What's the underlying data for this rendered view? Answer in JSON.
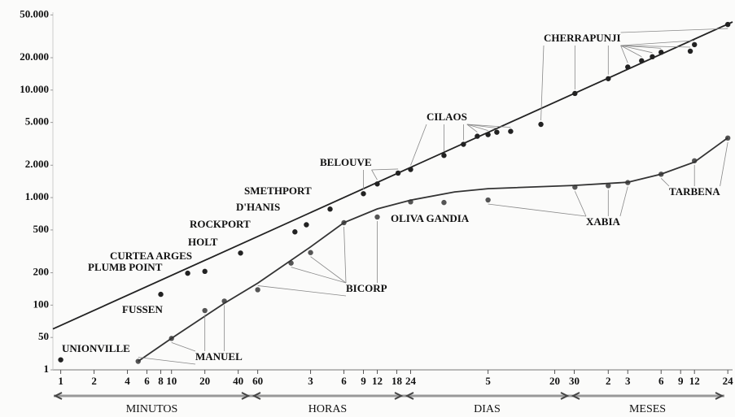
{
  "chart_data": {
    "type": "scatter",
    "log_x": true,
    "log_y": true,
    "xlim": [
      0.85,
      1160000
    ],
    "ylim": [
      25,
      53000
    ],
    "xticks": [
      1,
      2,
      4,
      6,
      8,
      10,
      20,
      40,
      {
        "value": 60,
        "label": "60"
      },
      {
        "value": 180,
        "label": "3"
      },
      {
        "value": 360,
        "label": "6"
      },
      {
        "value": 540,
        "label": "9"
      },
      {
        "value": 720,
        "label": "12"
      },
      {
        "value": 1080,
        "label": "18"
      },
      {
        "value": 1440,
        "label": "24"
      },
      {
        "value": 7200,
        "label": "5"
      },
      {
        "value": 28800,
        "label": "20"
      },
      {
        "value": 43200,
        "label": "30"
      },
      {
        "value": 87600,
        "label": "2"
      },
      {
        "value": 131400,
        "label": "3"
      },
      {
        "value": 262800,
        "label": "6"
      },
      {
        "value": 394200,
        "label": "9"
      },
      {
        "value": 525600,
        "label": "12"
      },
      {
        "value": 1051200,
        "label": "24"
      }
    ],
    "yticks": [
      {
        "value": 25,
        "label": "1"
      },
      50,
      100,
      200,
      500,
      {
        "value": 1000,
        "label": "1.000"
      },
      {
        "value": 2000,
        "label": "2.000"
      },
      {
        "value": 5000,
        "label": "5.000"
      },
      {
        "value": 10000,
        "label": "10.000"
      },
      {
        "value": 20000,
        "label": "20.000"
      },
      {
        "value": 50000,
        "label": "50.000"
      }
    ],
    "period_labels": [
      "MINUTOS",
      "HORAS",
      "DIAS",
      "MESES"
    ],
    "series": [
      {
        "color": "#222222",
        "marker": "dot",
        "x": [
          1,
          8,
          14,
          20,
          42,
          130,
          165,
          270,
          540,
          720,
          1110,
          1440,
          2880,
          4320,
          5760,
          7200,
          8640,
          11520,
          21600,
          43800,
          87600,
          131400,
          175200,
          219000,
          262800,
          481800,
          525600,
          1051200
        ],
        "values": [
          31,
          126,
          198,
          206,
          305,
          480,
          559,
          782,
          1087,
          1340,
          1690,
          1825,
          2467,
          3130,
          3721,
          3854,
          4055,
          4130,
          4798,
          9300,
          12767,
          16369,
          18738,
          20412,
          22454,
          22990,
          26461,
          40768
        ]
      },
      {
        "color": "#555555",
        "marker": "dot",
        "x": [
          5,
          10,
          20,
          30,
          60,
          120,
          180,
          360,
          720,
          1440,
          2880,
          7200,
          43800,
          87600,
          131400,
          262800,
          525600,
          1051200
        ],
        "values": [
          30,
          49,
          89,
          109,
          139,
          246,
          308,
          584,
          660,
          913,
          900,
          950,
          1250,
          1290,
          1380,
          1650,
          2200,
          3580
        ]
      },
      {
        "color": "#222222",
        "marker": "line",
        "x": [
          0.85,
          1160000
        ],
        "values": [
          60,
          43000
        ]
      },
      {
        "color": "#333333",
        "marker": "line",
        "x": [
          5,
          10,
          30,
          60,
          180,
          360,
          720,
          1440,
          3600,
          7200,
          43200,
          131400,
          262800,
          525600,
          1051200
        ],
        "values": [
          30,
          49,
          104,
          160,
          348,
          585,
          785,
          948,
          1130,
          1210,
          1297,
          1390,
          1652,
          2143,
          3597
        ]
      }
    ],
    "annotations": [
      "UNIONVILLE",
      "FUSSEN",
      "PLUMB POINT",
      "CURTEA ARGES",
      "HOLT",
      "ROCKPORT",
      "D'HANIS",
      "SMETHPORT",
      "BELOUVE",
      "CILAOS",
      "CHERRAPUNJI",
      "MANUEL",
      "BICORP",
      "OLIVA GANDIA",
      "XABIA",
      "TARBENA"
    ]
  }
}
